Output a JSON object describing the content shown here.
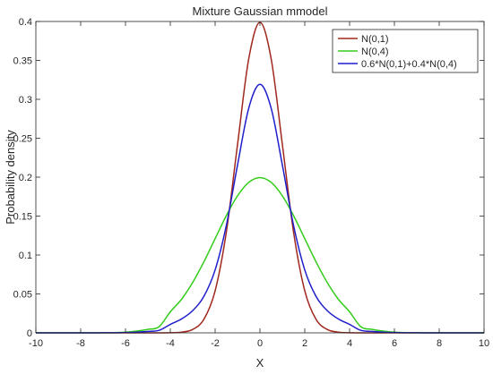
{
  "chart_data": {
    "type": "line",
    "title": "Mixture Gaussian mmodel",
    "xlabel": "X",
    "ylabel": "Probability density",
    "xlim": [
      -10,
      10
    ],
    "ylim": [
      0,
      0.4
    ],
    "xticks": [
      -10,
      -8,
      -6,
      -4,
      -2,
      0,
      2,
      4,
      6,
      8,
      10
    ],
    "yticks": [
      0,
      0.05,
      0.1,
      0.15,
      0.2,
      0.25,
      0.3,
      0.35,
      0.4
    ],
    "ytick_labels": [
      "0",
      "0.05",
      "0.1",
      "0.15",
      "0.2",
      "0.25",
      "0.3",
      "0.35",
      "0.4"
    ],
    "grid": false,
    "legend_position": "top-right",
    "x": [
      -10,
      -9.5,
      -9,
      -8.5,
      -8,
      -7.5,
      -7,
      -6.5,
      -6,
      -5.5,
      -5,
      -4.5,
      -4,
      -3.5,
      -3,
      -2.5,
      -2,
      -1.5,
      -1,
      -0.5,
      0,
      0.5,
      1,
      1.5,
      2,
      2.5,
      3,
      3.5,
      4,
      4.5,
      5,
      5.5,
      6,
      6.5,
      7,
      7.5,
      8,
      8.5,
      9,
      9.5,
      10
    ],
    "series": [
      {
        "name": "N(0,1)",
        "color": "#a0281e",
        "values": [
          0,
          0,
          0,
          0,
          0,
          0,
          0,
          0,
          0,
          0,
          0,
          0,
          0.0001,
          0.0009,
          0.0044,
          0.0175,
          0.054,
          0.1295,
          0.242,
          0.3521,
          0.3989,
          0.3521,
          0.242,
          0.1295,
          0.054,
          0.0175,
          0.0044,
          0.0009,
          0.0001,
          0,
          0,
          0,
          0,
          0,
          0,
          0,
          0,
          0,
          0,
          0,
          0
        ]
      },
      {
        "name": "N(0,4)",
        "color": "#33cc1a",
        "values": [
          0,
          0,
          0,
          0,
          0,
          0,
          0.0001,
          0.0003,
          0.0009,
          0.0023,
          0.0044,
          0.0079,
          0.027,
          0.0431,
          0.0648,
          0.0913,
          0.121,
          0.1506,
          0.176,
          0.1933,
          0.1995,
          0.1933,
          0.176,
          0.1506,
          0.121,
          0.0913,
          0.0648,
          0.0431,
          0.027,
          0.0079,
          0.0044,
          0.0023,
          0.0009,
          0.0003,
          0.0001,
          0,
          0,
          0,
          0,
          0,
          0
        ]
      },
      {
        "name": "0.6*N(0,1)+0.4*N(0,4)",
        "color": "#1f1fcc",
        "values": [
          0,
          0,
          0,
          0,
          0,
          0,
          0.0001,
          0.0001,
          0.0004,
          0.0009,
          0.0018,
          0.0032,
          0.0109,
          0.0178,
          0.0286,
          0.047,
          0.0808,
          0.138,
          0.2156,
          0.2886,
          0.3192,
          0.2886,
          0.2156,
          0.138,
          0.0808,
          0.047,
          0.0286,
          0.0178,
          0.0109,
          0.0032,
          0.0018,
          0.0009,
          0.0004,
          0.0001,
          0.0001,
          0,
          0,
          0,
          0,
          0,
          0
        ]
      }
    ]
  }
}
